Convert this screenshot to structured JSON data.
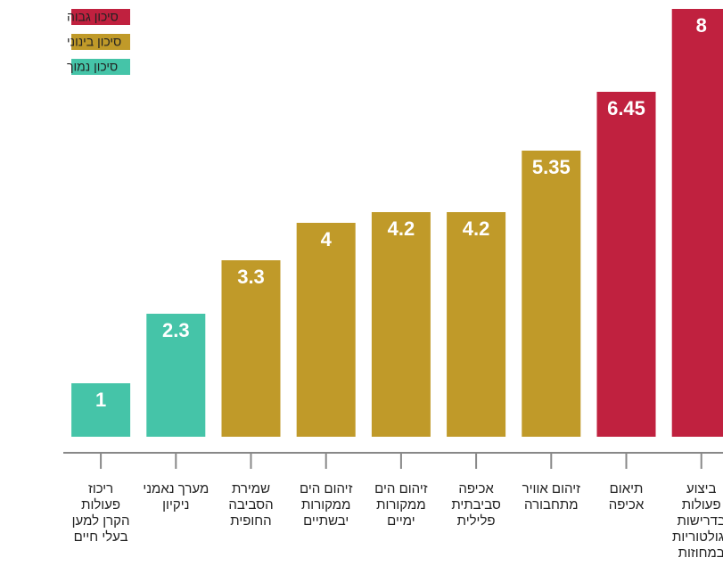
{
  "chart_data": {
    "type": "bar",
    "categories": [
      "ריכוז פעולות הקרן למען בעלי חיים",
      "מערך נאמני ניקיון",
      "שמירת הסביבה החופית",
      "זיהום הים ממקורות יבשתיים",
      "זיהום הים ממקורות ימיים",
      "אכיפה סביבתית פלילית",
      "זיהום אוויר מתחבורה",
      "תיאום אכיפה",
      "ביצוע פעולות בדרישות רגולטוריות במחוזות"
    ],
    "series": [
      {
        "name": "סיכון גבוה",
        "color": "#c0213f",
        "values": [
          null,
          null,
          null,
          null,
          null,
          null,
          null,
          6.45,
          8
        ]
      },
      {
        "name": "סיכון בינוני",
        "color": "#c09a29",
        "values": [
          null,
          null,
          3.3,
          4,
          4.2,
          4.2,
          5.35,
          null,
          null
        ]
      },
      {
        "name": "סיכון נמוך",
        "color": "#45c4a8",
        "values": [
          1,
          2.3,
          null,
          null,
          null,
          null,
          null,
          null,
          null
        ]
      }
    ],
    "ylim": [
      0,
      8
    ],
    "legend": "top-left"
  }
}
